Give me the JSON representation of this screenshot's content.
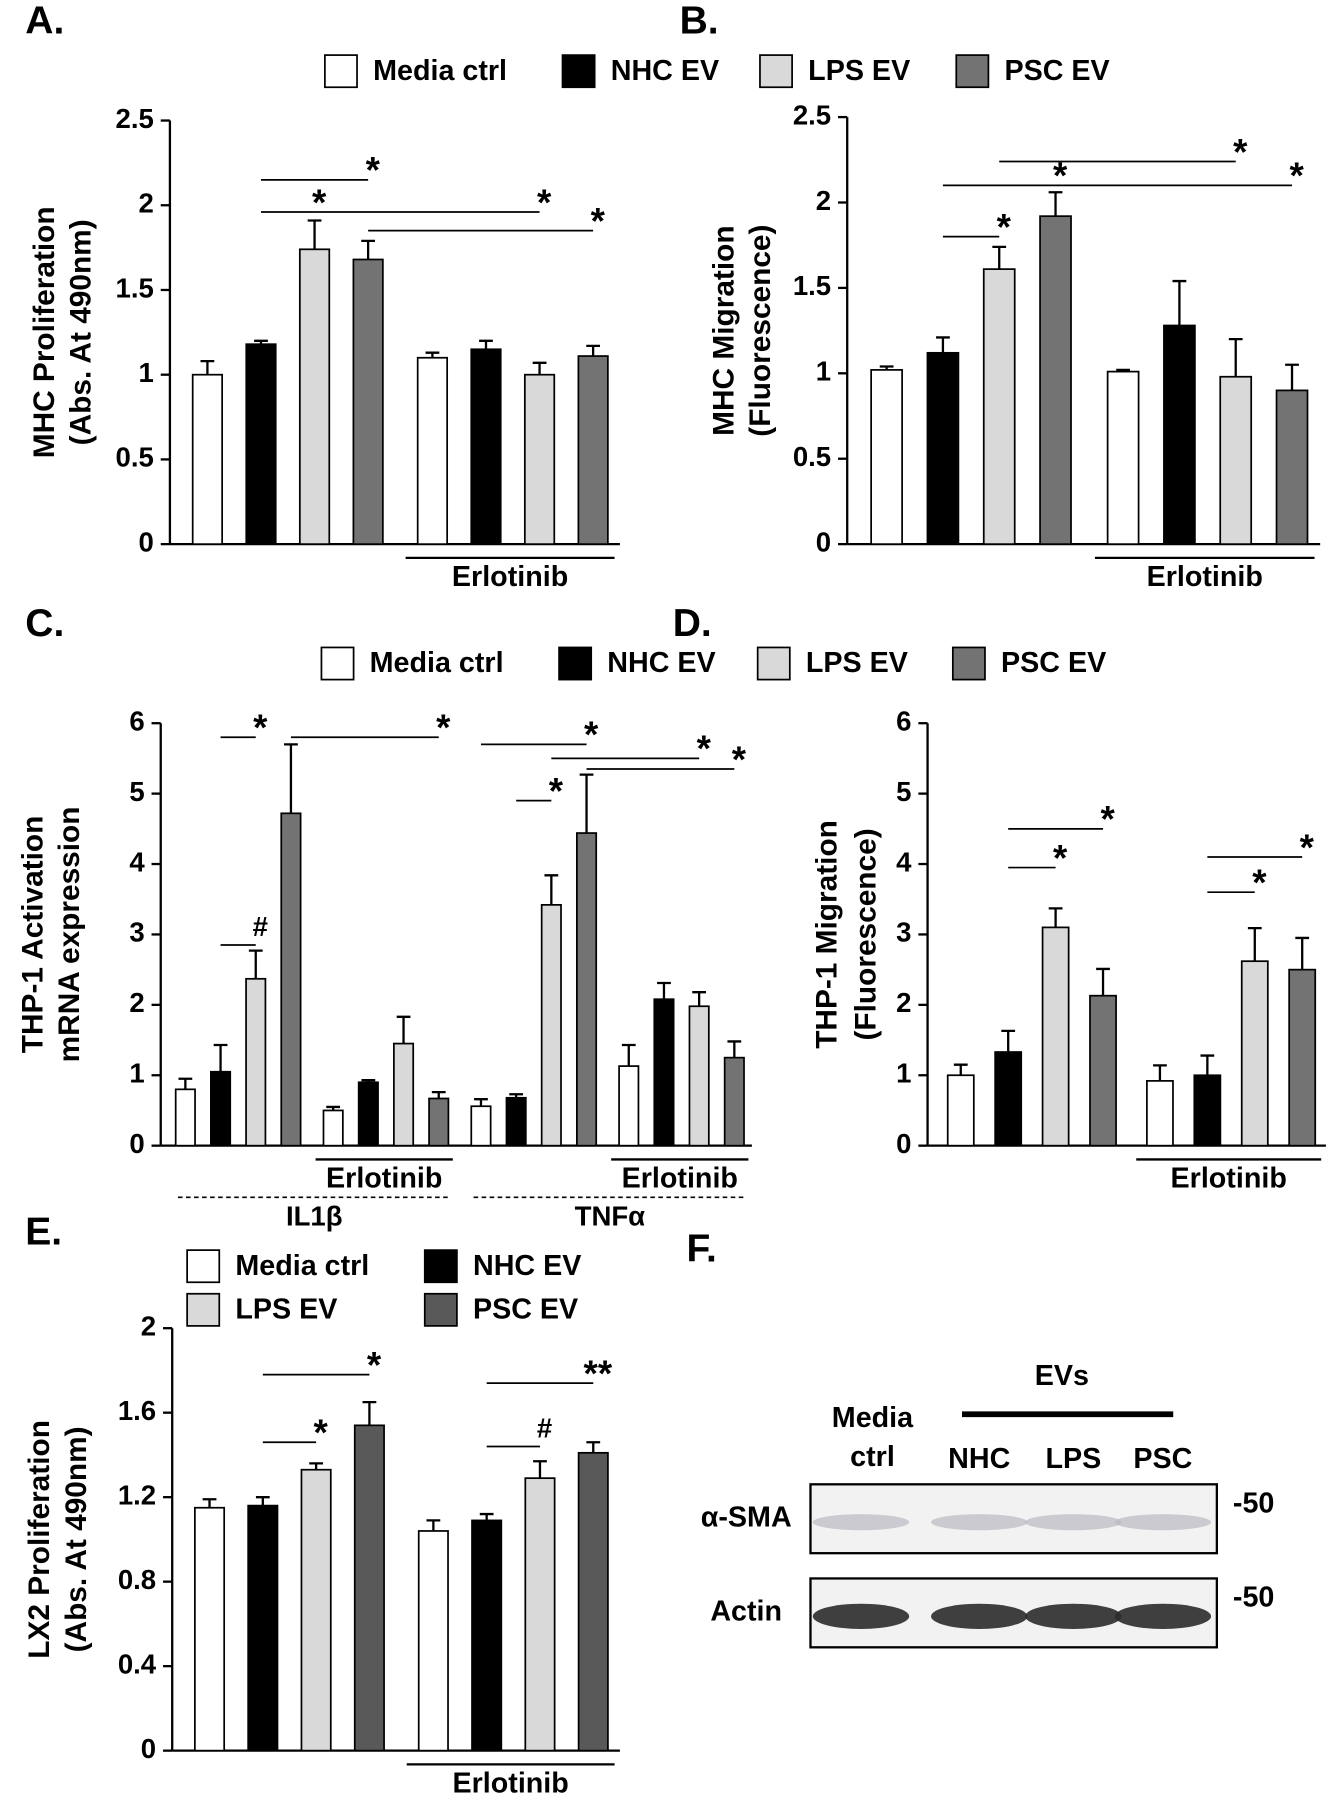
{
  "chart_data": [
    {
      "type": "bar",
      "panel": "A.",
      "ylabel": [
        "MHC Proliferation",
        "(Abs. At 490nm)"
      ],
      "categories": [
        null,
        "Erlotinib"
      ],
      "series": [
        {
          "name": "Media ctrl",
          "color": "#ffffff",
          "values": [
            1.0,
            1.1
          ],
          "errors": [
            0.08,
            0.03
          ]
        },
        {
          "name": "NHC EV",
          "color": "#000000",
          "values": [
            1.18,
            1.15
          ],
          "errors": [
            0.02,
            0.05
          ]
        },
        {
          "name": "LPS EV",
          "color": "#d9d9d9",
          "values": [
            1.74,
            1.0
          ],
          "errors": [
            0.17,
            0.07
          ]
        },
        {
          "name": "PSC EV",
          "color": "#737373",
          "values": [
            1.68,
            1.11
          ],
          "errors": [
            0.11,
            0.06
          ]
        }
      ],
      "ylim": [
        0,
        2.5
      ],
      "yticks": [
        0,
        0.5,
        1,
        1.5,
        2,
        2.5
      ],
      "significance": [
        {
          "label": "*",
          "from": [
            0,
            1
          ],
          "to": [
            0,
            3
          ],
          "y": 2.15
        },
        {
          "label": "*",
          "from": [
            0,
            1
          ],
          "to": [
            0,
            2
          ],
          "y": 1.96
        },
        {
          "label": "*",
          "from": [
            0,
            2
          ],
          "to": [
            1,
            2
          ],
          "y": 1.96
        },
        {
          "label": "*",
          "from": [
            0,
            3
          ],
          "to": [
            1,
            3
          ],
          "y": 1.85
        }
      ]
    },
    {
      "type": "bar",
      "panel": "B.",
      "ylabel": [
        "MHC Migration",
        "(Fluorescence)"
      ],
      "categories": [
        null,
        "Erlotinib"
      ],
      "series": [
        {
          "color": "#ffffff",
          "values": [
            1.02,
            1.01
          ],
          "errors": [
            0.02,
            0.01
          ]
        },
        {
          "color": "#000000",
          "values": [
            1.12,
            1.28
          ],
          "errors": [
            0.09,
            0.26
          ]
        },
        {
          "color": "#d9d9d9",
          "values": [
            1.61,
            0.98
          ],
          "errors": [
            0.13,
            0.22
          ]
        },
        {
          "color": "#737373",
          "values": [
            1.92,
            0.9
          ],
          "errors": [
            0.14,
            0.15
          ]
        }
      ],
      "ylim": [
        0,
        2.5
      ],
      "yticks": [
        0,
        0.5,
        1,
        1.5,
        2,
        2.5
      ],
      "significance": [
        {
          "label": "*",
          "from": [
            0,
            1
          ],
          "to": [
            0,
            2
          ],
          "y": 1.8
        },
        {
          "label": "*",
          "from": [
            0,
            2
          ],
          "to": [
            1,
            2
          ],
          "y": 2.24
        },
        {
          "label": "*",
          "from": [
            0,
            1
          ],
          "to": [
            0,
            3
          ],
          "y": 2.1
        },
        {
          "label": "*",
          "from": [
            0,
            3
          ],
          "to": [
            1,
            3
          ],
          "y": 2.1
        }
      ]
    },
    {
      "type": "bar",
      "panel": "C.",
      "ylabel": [
        "THP-1 Activation",
        "mRNA expression"
      ],
      "categories": [
        null,
        "Erlotinib",
        null,
        "Erlotinib"
      ],
      "supergroups": [
        {
          "label": "IL1β",
          "span": [
            0,
            1
          ]
        },
        {
          "label": "TNFα",
          "span": [
            2,
            3
          ]
        }
      ],
      "series": [
        {
          "name": "Media ctrl",
          "color": "#ffffff",
          "values": [
            0.8,
            0.5,
            0.56,
            1.13
          ],
          "errors": [
            0.15,
            0.05,
            0.1,
            0.3
          ]
        },
        {
          "name": "NHC EV",
          "color": "#000000",
          "values": [
            1.05,
            0.9,
            0.68,
            2.08
          ],
          "errors": [
            0.38,
            0.03,
            0.05,
            0.23
          ]
        },
        {
          "name": "LPS EV",
          "color": "#d9d9d9",
          "values": [
            2.37,
            1.45,
            3.42,
            1.98
          ],
          "errors": [
            0.4,
            0.38,
            0.42,
            0.2
          ]
        },
        {
          "name": "PSC EV",
          "color": "#737373",
          "values": [
            4.72,
            0.67,
            4.44,
            1.25
          ],
          "errors": [
            0.98,
            0.09,
            0.83,
            0.23
          ]
        }
      ],
      "ylim": [
        0,
        6
      ],
      "yticks": [
        0,
        1,
        2,
        3,
        4,
        5,
        6
      ],
      "significance": [
        {
          "label": "#",
          "from": [
            0,
            1
          ],
          "to": [
            0,
            2
          ],
          "y": 2.85
        },
        {
          "label": "*",
          "from": [
            0,
            1
          ],
          "to": [
            0,
            2
          ],
          "y": 5.8
        },
        {
          "label": "*",
          "from": [
            0,
            3
          ],
          "to": [
            1,
            3
          ],
          "y": 5.8
        },
        {
          "label": "*",
          "from": [
            2,
            1
          ],
          "to": [
            2,
            2
          ],
          "y": 4.9
        },
        {
          "label": "*",
          "from": [
            2,
            0
          ],
          "to": [
            2,
            3
          ],
          "y": 5.7
        },
        {
          "label": "*",
          "from": [
            2,
            2
          ],
          "to": [
            3,
            2
          ],
          "y": 5.5
        },
        {
          "label": "*",
          "from": [
            2,
            3
          ],
          "to": [
            3,
            3
          ],
          "y": 5.35
        }
      ]
    },
    {
      "type": "bar",
      "panel": "D.",
      "ylabel": [
        "THP-1 Migration",
        "(Fluorescence)"
      ],
      "categories": [
        null,
        "Erlotinib"
      ],
      "series": [
        {
          "color": "#ffffff",
          "values": [
            1.0,
            0.92
          ],
          "errors": [
            0.15,
            0.22
          ]
        },
        {
          "color": "#000000",
          "values": [
            1.33,
            1.0
          ],
          "errors": [
            0.3,
            0.28
          ]
        },
        {
          "color": "#d9d9d9",
          "values": [
            3.1,
            2.62
          ],
          "errors": [
            0.27,
            0.47
          ]
        },
        {
          "color": "#737373",
          "values": [
            2.13,
            2.5
          ],
          "errors": [
            0.38,
            0.45
          ]
        }
      ],
      "ylim": [
        0,
        6
      ],
      "yticks": [
        0,
        1,
        2,
        3,
        4,
        5,
        6
      ],
      "significance": [
        {
          "label": "*",
          "from": [
            0,
            1
          ],
          "to": [
            0,
            2
          ],
          "y": 3.95
        },
        {
          "label": "*",
          "from": [
            0,
            1
          ],
          "to": [
            0,
            3
          ],
          "y": 4.5
        },
        {
          "label": "*",
          "from": [
            1,
            1
          ],
          "to": [
            1,
            2
          ],
          "y": 3.6
        },
        {
          "label": "*",
          "from": [
            1,
            1
          ],
          "to": [
            1,
            3
          ],
          "y": 4.1
        }
      ]
    },
    {
      "type": "bar",
      "panel": "E.",
      "ylabel": [
        "LX2 Proliferation",
        "(Abs. At 490nm)"
      ],
      "categories": [
        null,
        "Erlotinib"
      ],
      "series": [
        {
          "name": "Media ctrl",
          "color": "#ffffff",
          "values": [
            1.15,
            1.04
          ],
          "errors": [
            0.04,
            0.05
          ]
        },
        {
          "name": "NHC EV",
          "color": "#000000",
          "values": [
            1.16,
            1.09
          ],
          "errors": [
            0.04,
            0.03
          ]
        },
        {
          "name": "LPS EV",
          "color": "#d9d9d9",
          "values": [
            1.33,
            1.29
          ],
          "errors": [
            0.03,
            0.08
          ]
        },
        {
          "name": "PSC EV",
          "color": "#595959",
          "values": [
            1.54,
            1.41
          ],
          "errors": [
            0.11,
            0.05
          ]
        }
      ],
      "ylim": [
        0,
        2
      ],
      "yticks": [
        0,
        0.4,
        0.8,
        1.2,
        1.6,
        2
      ],
      "significance": [
        {
          "label": "*",
          "from": [
            0,
            1
          ],
          "to": [
            0,
            2
          ],
          "y": 1.46
        },
        {
          "label": "*",
          "from": [
            0,
            1
          ],
          "to": [
            0,
            3
          ],
          "y": 1.78
        },
        {
          "label": "#",
          "from": [
            1,
            1
          ],
          "to": [
            1,
            2
          ],
          "y": 1.44
        },
        {
          "label": "**",
          "from": [
            1,
            1
          ],
          "to": [
            1,
            3
          ],
          "y": 1.74
        }
      ]
    }
  ],
  "blot": {
    "panel": "F.",
    "group_label": "EVs",
    "lanes": [
      "Media ctrl",
      "NHC",
      "LPS",
      "PSC"
    ],
    "rows": [
      "α-SMA",
      "Actin"
    ],
    "markers": [
      "-50",
      "-50"
    ]
  }
}
